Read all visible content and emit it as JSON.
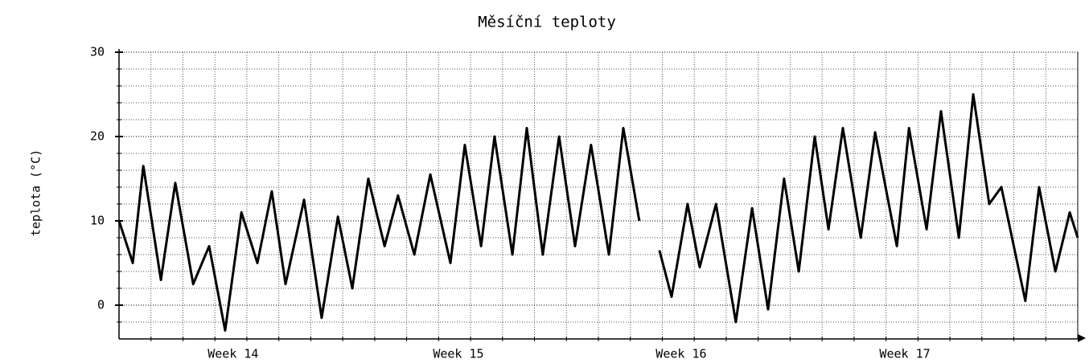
{
  "chart_data": {
    "type": "line",
    "title": "Měsíční teploty",
    "y_label": "teplota (°C)",
    "x": [
      0,
      0.43,
      0.76,
      1.31,
      1.76,
      2.32,
      2.82,
      3.32,
      3.83,
      4.33,
      4.78,
      5.21,
      5.79,
      6.34,
      6.85,
      7.3,
      7.8,
      8.31,
      8.73,
      9.24,
      9.74,
      10.37,
      10.82,
      11.33,
      11.75,
      12.31,
      12.76,
      13.26,
      13.77,
      14.27,
      14.77,
      15.33,
      15.78,
      16.28,
      16.6,
      16.91,
      17.29,
      17.79,
      18.17,
      18.68,
      19.3,
      19.81,
      20.31,
      20.81,
      21.27,
      21.77,
      22.2,
      22.65,
      23.21,
      23.66,
      24.34,
      24.72,
      25.27,
      25.72,
      26.28,
      26.73,
      27.23,
      27.61,
      28.36,
      28.79,
      29.3,
      29.75,
      30
    ],
    "series": [
      {
        "name": "teplota",
        "color": "#000000",
        "values": [
          10,
          5,
          16.5,
          3,
          14.5,
          2.5,
          7,
          -3,
          11,
          5,
          13.5,
          2.5,
          12.5,
          -1.5,
          10.5,
          2,
          15,
          7,
          13,
          6,
          15.5,
          5,
          19,
          7,
          20,
          6,
          21,
          6,
          20,
          7,
          19,
          6,
          21,
          10,
          null,
          6.5,
          1,
          12,
          4.5,
          12,
          -2,
          11.5,
          -0.5,
          15,
          4,
          20,
          9,
          21,
          8,
          20.5,
          7,
          21,
          9,
          23,
          8,
          25,
          12,
          14,
          0.5,
          14,
          4,
          11,
          8
        ]
      }
    ],
    "xlim": [
      0,
      30
    ],
    "xticks": [
      {
        "value": 3.57,
        "label": "Week 14"
      },
      {
        "value": 10.62,
        "label": "Week 15"
      },
      {
        "value": 17.59,
        "label": "Week 16"
      },
      {
        "value": 24.59,
        "label": "Week 17"
      }
    ],
    "xgrid": [
      1,
      2,
      3,
      4,
      5,
      6,
      7,
      8,
      9,
      10,
      11,
      12,
      13,
      14,
      15,
      16,
      17,
      18,
      19,
      20,
      21,
      22,
      23,
      24,
      25,
      26,
      27,
      28,
      29
    ],
    "ylim": [
      -4,
      30
    ],
    "yticks": [
      0,
      10,
      20,
      30
    ],
    "ygrid": [
      -2,
      2,
      4,
      6,
      8,
      12,
      14,
      16,
      18,
      22,
      24,
      26,
      28
    ],
    "grid": true
  }
}
